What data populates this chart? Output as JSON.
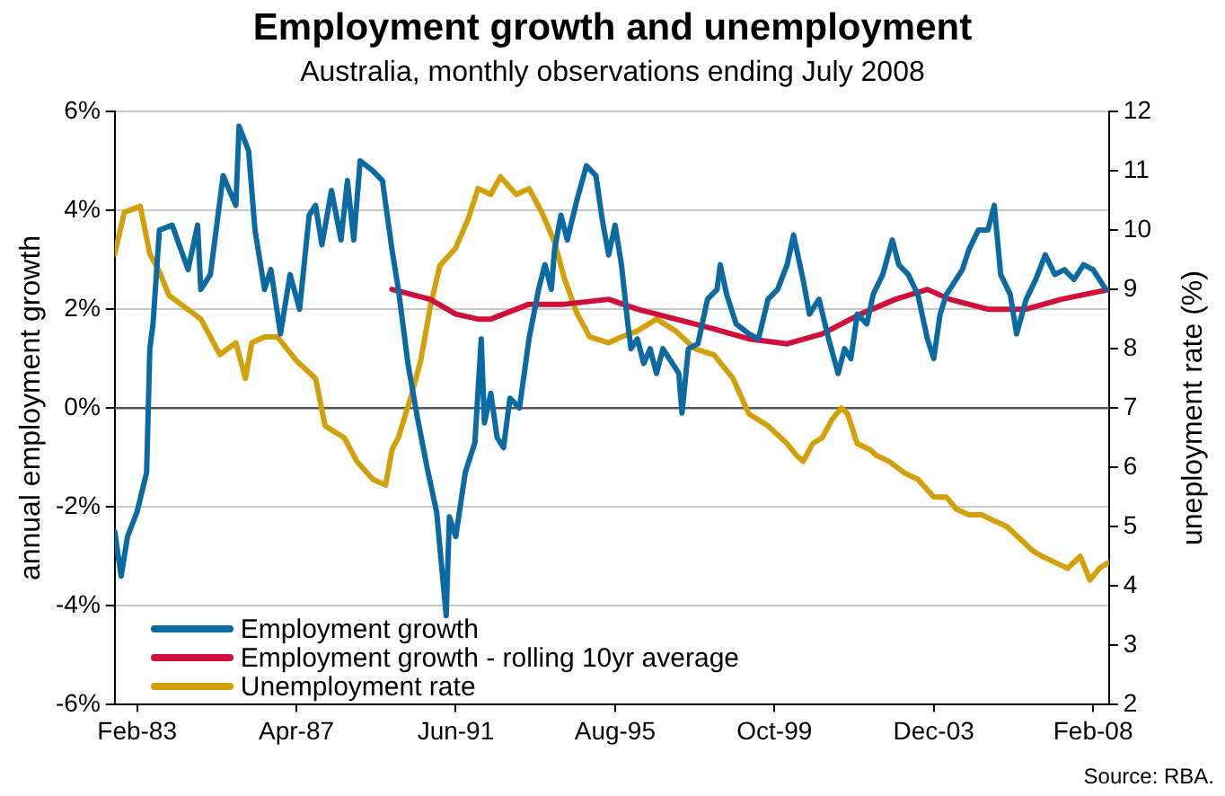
{
  "chart_data": {
    "type": "line",
    "title": "Employment growth and unemployment",
    "subtitle": "Australia, monthly observations ending July 2008",
    "ylabel": "annual employment growth",
    "y2label": "uneployment rate (%)",
    "annotations": [
      "Source: RBA."
    ],
    "xlim": [
      "1982-07",
      "2008-07"
    ],
    "xticks": [
      {
        "value": "1983-02",
        "label": "Feb-83"
      },
      {
        "value": "1987-04",
        "label": "Apr-87"
      },
      {
        "value": "1991-06",
        "label": "Jun-91"
      },
      {
        "value": "1995-08",
        "label": "Aug-95"
      },
      {
        "value": "1999-10",
        "label": "Oct-99"
      },
      {
        "value": "2003-12",
        "label": "Dec-03"
      },
      {
        "value": "2008-02",
        "label": "Feb-08"
      }
    ],
    "ylim": [
      -6,
      6
    ],
    "yticks": [
      {
        "value": 6,
        "label": "6%"
      },
      {
        "value": 4,
        "label": "4%"
      },
      {
        "value": 2,
        "label": "2%"
      },
      {
        "value": 0,
        "label": "0%"
      },
      {
        "value": -2,
        "label": "-2%"
      },
      {
        "value": -4,
        "label": "-4%"
      },
      {
        "value": -6,
        "label": "-6%"
      }
    ],
    "y2lim": [
      2,
      12
    ],
    "y2ticks": [
      2,
      3,
      4,
      5,
      6,
      7,
      8,
      9,
      10,
      11,
      12
    ],
    "grid": "y",
    "legend": "bottom left",
    "marker": "none",
    "line_style": "solid",
    "ref_lines": [
      {
        "axis": "y",
        "value": 0,
        "color": "#555555"
      }
    ],
    "series": [
      {
        "name": "Employment growth",
        "color": "#0b6aa2",
        "x": [
          "1982-07",
          "1982-09",
          "1982-11",
          "1983-02",
          "1983-05",
          "1983-06",
          "1983-07",
          "1983-09",
          "1984-01",
          "1984-06",
          "1984-09",
          "1984-10",
          "1985-01",
          "1985-05",
          "1985-09",
          "1985-10",
          "1986-01",
          "1986-03",
          "1986-06",
          "1986-08",
          "1986-11",
          "1987-02",
          "1987-05",
          "1987-08",
          "1987-10",
          "1987-12",
          "1988-03",
          "1988-06",
          "1988-08",
          "1988-10",
          "1988-12",
          "1989-04",
          "1989-07",
          "1989-10",
          "1989-12",
          "1990-03",
          "1990-06",
          "1990-09",
          "1990-12",
          "1991-03",
          "1991-04",
          "1991-06",
          "1991-09",
          "1991-12",
          "1992-02",
          "1992-03",
          "1992-05",
          "1992-07",
          "1992-09",
          "1992-11",
          "1993-02",
          "1993-05",
          "1993-08",
          "1993-10",
          "1993-12",
          "1994-01",
          "1994-03",
          "1994-05",
          "1994-08",
          "1994-11",
          "1995-02",
          "1995-04",
          "1995-06",
          "1995-08",
          "1995-10",
          "1995-12",
          "1996-01",
          "1996-03",
          "1996-05",
          "1996-07",
          "1996-09",
          "1996-11",
          "1997-02",
          "1997-04",
          "1997-05",
          "1997-07",
          "1997-10",
          "1998-01",
          "1998-04",
          "1998-05",
          "1998-07",
          "1998-10",
          "1999-02",
          "1999-05",
          "1999-08",
          "1999-11",
          "2000-02",
          "2000-04",
          "2000-07",
          "2000-09",
          "2000-12",
          "2001-03",
          "2001-06",
          "2001-08",
          "2001-10",
          "2001-12",
          "2002-03",
          "2002-05",
          "2002-08",
          "2002-11",
          "2003-01",
          "2003-04",
          "2003-07",
          "2003-10",
          "2003-12",
          "2004-02",
          "2004-04",
          "2004-07",
          "2004-09",
          "2004-11",
          "2005-02",
          "2005-05",
          "2005-07",
          "2005-09",
          "2005-12",
          "2006-02",
          "2006-05",
          "2006-08",
          "2006-11",
          "2007-02",
          "2007-05",
          "2007-08",
          "2007-11",
          "2008-02",
          "2008-04",
          "2008-06"
        ],
        "values": [
          -2.5,
          -3.4,
          -2.6,
          -2.1,
          -1.3,
          1.2,
          1.7,
          3.6,
          3.7,
          2.8,
          3.7,
          2.4,
          2.7,
          4.7,
          4.1,
          5.7,
          5.2,
          3.6,
          2.4,
          2.8,
          1.5,
          2.7,
          2.0,
          3.9,
          4.1,
          3.3,
          4.4,
          3.4,
          4.6,
          3.4,
          5.0,
          4.8,
          4.6,
          3.2,
          2.4,
          0.9,
          -0.2,
          -1.2,
          -2.1,
          -4.2,
          -2.2,
          -2.6,
          -1.3,
          -0.7,
          1.4,
          -0.3,
          0.3,
          -0.6,
          -0.8,
          0.2,
          0.0,
          1.4,
          2.4,
          2.9,
          2.4,
          3.2,
          3.9,
          3.4,
          4.2,
          4.9,
          4.7,
          3.8,
          3.1,
          3.7,
          2.9,
          1.7,
          1.2,
          1.4,
          0.9,
          1.2,
          0.7,
          1.2,
          0.9,
          0.7,
          -0.1,
          1.2,
          1.3,
          2.2,
          2.4,
          2.9,
          2.3,
          1.7,
          1.5,
          1.4,
          2.2,
          2.4,
          2.9,
          3.5,
          2.6,
          1.9,
          2.2,
          1.4,
          0.7,
          1.2,
          1.0,
          1.9,
          1.7,
          2.3,
          2.7,
          3.4,
          2.9,
          2.7,
          2.3,
          1.4,
          1.0,
          1.9,
          2.3,
          2.6,
          2.8,
          3.2,
          3.6,
          3.6,
          4.1,
          2.7,
          2.3,
          1.5,
          2.2,
          2.6,
          3.1,
          2.7,
          2.8,
          2.6,
          2.9,
          2.8,
          2.6,
          2.4
        ]
      },
      {
        "name": "Employment growth - rolling 10yr average",
        "color": "#d0103a",
        "x": [
          "1989-10",
          "1990-10",
          "1991-06",
          "1992-01",
          "1992-05",
          "1993-05",
          "1994-04",
          "1995-06",
          "1996-03",
          "1997-03",
          "1998-03",
          "1999-02",
          "2000-02",
          "2001-01",
          "2002-01",
          "2002-12",
          "2003-10",
          "2004-05",
          "2005-05",
          "2006-05",
          "2007-04",
          "2008-07"
        ],
        "values": [
          2.4,
          2.2,
          1.9,
          1.8,
          1.8,
          2.1,
          2.1,
          2.2,
          2.0,
          1.8,
          1.6,
          1.4,
          1.3,
          1.5,
          1.9,
          2.2,
          2.4,
          2.2,
          2.0,
          2.0,
          2.2,
          2.4
        ]
      },
      {
        "name": "Unemployment rate",
        "color": "#d4a00a",
        "axis": "y2",
        "x": [
          "1982-07",
          "1982-10",
          "1983-03",
          "1983-06",
          "1983-09",
          "1983-12",
          "1984-05",
          "1984-10",
          "1985-01",
          "1985-04",
          "1985-09",
          "1985-12",
          "1986-02",
          "1986-06",
          "1986-10",
          "1987-04",
          "1987-10",
          "1988-01",
          "1988-07",
          "1988-11",
          "1989-04",
          "1989-08",
          "1989-10",
          "1989-12",
          "1990-04",
          "1990-07",
          "1990-10",
          "1991-01",
          "1991-06",
          "1991-10",
          "1992-01",
          "1992-05",
          "1992-08",
          "1993-01",
          "1993-05",
          "1993-09",
          "1994-01",
          "1994-04",
          "1994-08",
          "1994-12",
          "1995-06",
          "1995-10",
          "1996-03",
          "1996-09",
          "1997-03",
          "1997-09",
          "1998-03",
          "1998-09",
          "1999-02",
          "1999-08",
          "2000-02",
          "2000-05",
          "2000-07",
          "2000-10",
          "2001-01",
          "2001-04",
          "2001-07",
          "2001-09",
          "2001-12",
          "2002-04",
          "2002-06",
          "2002-10",
          "2003-03",
          "2003-07",
          "2003-12",
          "2004-04",
          "2004-07",
          "2004-11",
          "2005-03",
          "2005-07",
          "2005-11",
          "2006-03",
          "2006-07",
          "2006-10",
          "2007-02",
          "2007-06",
          "2007-10",
          "2008-01",
          "2008-04",
          "2008-07"
        ],
        "values": [
          9.6,
          10.3,
          10.4,
          9.6,
          9.3,
          8.9,
          8.7,
          8.5,
          8.2,
          7.9,
          8.1,
          7.5,
          8.1,
          8.2,
          8.2,
          7.8,
          7.5,
          6.7,
          6.5,
          6.1,
          5.8,
          5.7,
          6.3,
          6.5,
          7.2,
          7.8,
          8.7,
          9.4,
          9.7,
          10.2,
          10.7,
          10.6,
          10.9,
          10.6,
          10.7,
          10.3,
          9.8,
          9.2,
          8.6,
          8.2,
          8.1,
          8.2,
          8.3,
          8.5,
          8.3,
          8.0,
          7.9,
          7.5,
          6.9,
          6.7,
          6.4,
          6.2,
          6.1,
          6.4,
          6.5,
          6.8,
          7.0,
          6.9,
          6.4,
          6.3,
          6.2,
          6.1,
          5.9,
          5.8,
          5.5,
          5.5,
          5.3,
          5.2,
          5.2,
          5.1,
          5.0,
          4.8,
          4.6,
          4.5,
          4.4,
          4.3,
          4.5,
          4.1,
          4.3,
          4.4
        ]
      }
    ]
  }
}
